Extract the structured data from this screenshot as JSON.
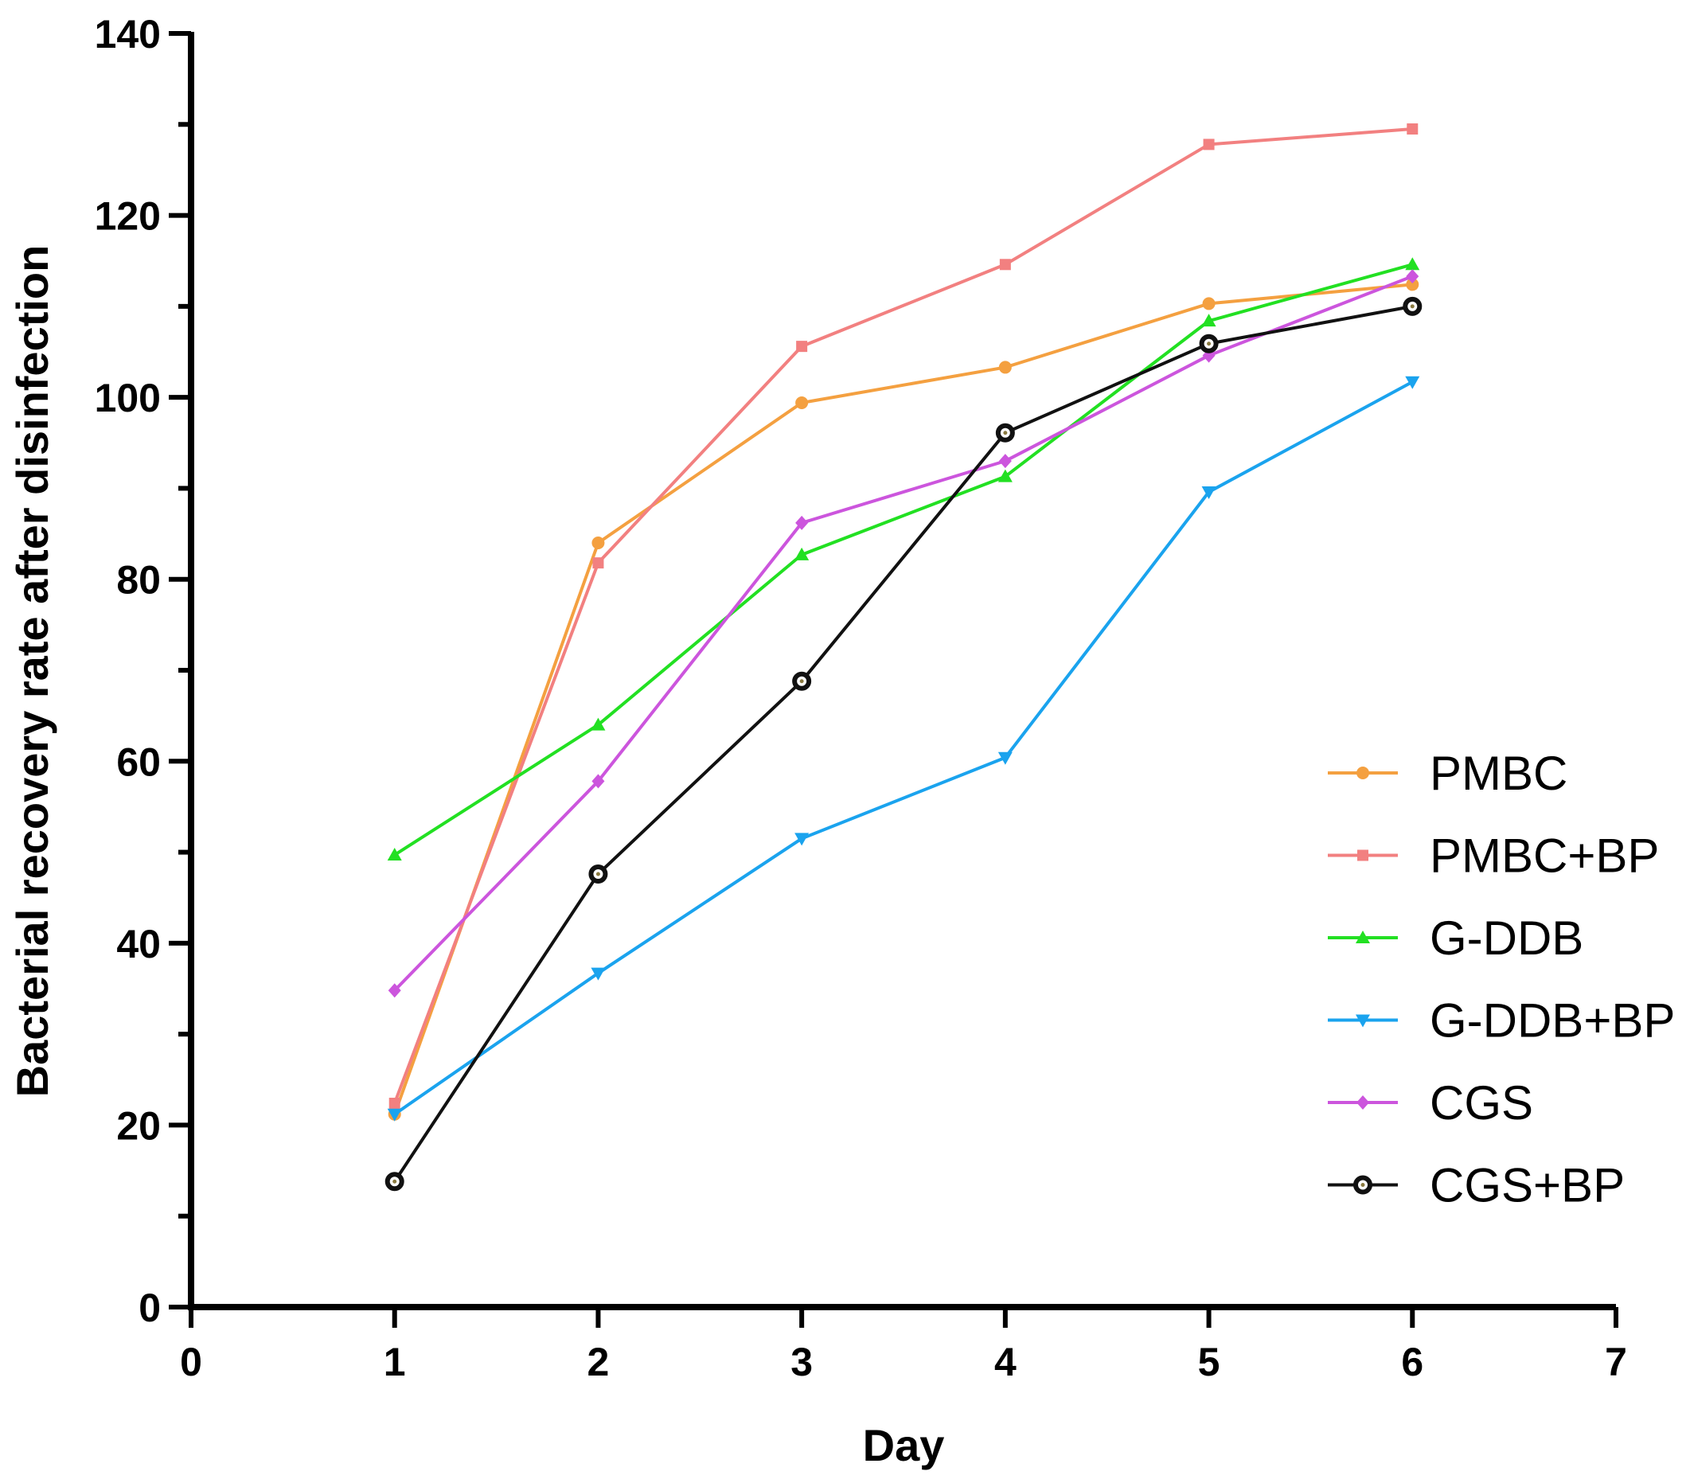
{
  "chart_data": {
    "type": "line",
    "title": "",
    "xlabel": "Day",
    "ylabel": "Bacterial recovery rate after disinfection",
    "xlim": [
      0,
      7
    ],
    "ylim": [
      0,
      140
    ],
    "x_ticks": [
      "0",
      "1",
      "2",
      "3",
      "4",
      "5",
      "6",
      "7"
    ],
    "y_ticks": [
      "0",
      "20",
      "40",
      "60",
      "80",
      "100",
      "120",
      "140"
    ],
    "x_tick_values": [
      0,
      1,
      2,
      3,
      4,
      5,
      6,
      7
    ],
    "y_tick_values": [
      0,
      20,
      40,
      60,
      80,
      100,
      120,
      140
    ],
    "y_minor_step": 10,
    "grid": false,
    "legend_position": "right",
    "x": [
      1,
      2,
      3,
      4,
      5,
      6
    ],
    "series": [
      {
        "name": "PMBC",
        "color": "#F4A040",
        "marker": "circle",
        "values": [
          21.2,
          84.0,
          99.4,
          103.3,
          110.3,
          112.4
        ]
      },
      {
        "name": "PMBC+BP",
        "color": "#F28080",
        "marker": "square",
        "values": [
          22.4,
          81.8,
          105.6,
          114.6,
          127.8,
          129.5
        ]
      },
      {
        "name": "G-DDB",
        "color": "#22E022",
        "marker": "triangle-up",
        "values": [
          49.7,
          64.0,
          82.7,
          91.3,
          108.4,
          114.6
        ]
      },
      {
        "name": "G-DDB+BP",
        "color": "#1AA3EE",
        "marker": "triangle-down",
        "values": [
          21.2,
          36.7,
          51.5,
          60.4,
          89.6,
          101.7
        ]
      },
      {
        "name": "CGS",
        "color": "#CC55DD",
        "marker": "diamond",
        "values": [
          34.8,
          57.8,
          86.2,
          93.0,
          104.6,
          113.3
        ]
      },
      {
        "name": "CGS+BP",
        "color": "#111111",
        "marker": "open-circle",
        "values": [
          13.8,
          47.6,
          68.8,
          96.1,
          105.9,
          110.0
        ]
      }
    ]
  }
}
